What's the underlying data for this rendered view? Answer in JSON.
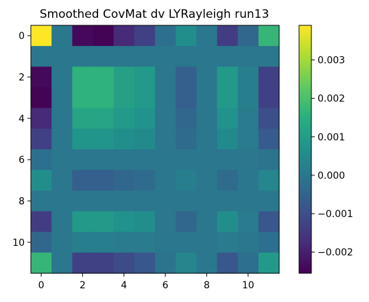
{
  "chart_data": {
    "type": "heatmap",
    "title": "Smoothed CovMat dv LYRayleigh run13",
    "xlabel": "",
    "ylabel": "",
    "colormap": "viridis",
    "vmin": -0.00255,
    "vmax": 0.0039,
    "x_ticks": [
      0,
      2,
      4,
      6,
      8,
      10
    ],
    "y_ticks": [
      0,
      2,
      4,
      6,
      8,
      10
    ],
    "x_tick_labels": [
      "0",
      "2",
      "4",
      "6",
      "8",
      "10"
    ],
    "y_tick_labels": [
      "0",
      "2",
      "4",
      "6",
      "8",
      "10"
    ],
    "colorbar_ticks": [
      0.003,
      0.002,
      0.001,
      0.0,
      -0.001,
      -0.002
    ],
    "colorbar_tick_labels": [
      "0.003",
      "0.002",
      "0.001",
      "0.000",
      "−0.001",
      "−0.002"
    ],
    "rows": 12,
    "cols": 12,
    "matrix": [
      [
        0.0039,
        0.0,
        -0.0024,
        -0.0025,
        -0.0018,
        -0.0013,
        -0.0002,
        0.0006,
        0.0,
        -0.0014,
        -0.0004,
        0.0017
      ],
      [
        0.0,
        0.0,
        0.0,
        0.0,
        0.0,
        0.0,
        0.0,
        0.0,
        0.0,
        0.0,
        0.0,
        0.0
      ],
      [
        -0.0024,
        0.0,
        0.0016,
        0.0016,
        0.0011,
        0.0009,
        0.0,
        -0.0006,
        0.0,
        0.0009,
        0.0002,
        -0.0013
      ],
      [
        -0.0025,
        0.0,
        0.0016,
        0.0016,
        0.0011,
        0.0009,
        0.0,
        -0.0006,
        0.0,
        0.0009,
        0.0002,
        -0.0013
      ],
      [
        -0.0018,
        0.0,
        0.0012,
        0.0012,
        0.0009,
        0.0007,
        0.0,
        -0.0004,
        0.0,
        0.0007,
        0.0001,
        -0.001
      ],
      [
        -0.0013,
        0.0,
        0.0008,
        0.0008,
        0.0006,
        0.0005,
        0.0,
        -0.0003,
        0.0,
        0.0005,
        0.0001,
        -0.0007
      ],
      [
        -0.0002,
        0.0,
        0.0,
        0.0,
        0.0,
        0.0,
        0.0,
        0.0,
        0.0,
        0.0,
        0.0,
        -0.0001
      ],
      [
        0.0006,
        0.0,
        -0.0006,
        -0.0006,
        -0.0004,
        -0.0003,
        0.0,
        0.0002,
        0.0,
        -0.0003,
        0.0,
        0.0004
      ],
      [
        0.0,
        0.0,
        0.0,
        0.0,
        0.0,
        0.0,
        0.0,
        0.0,
        0.0,
        0.0,
        0.0,
        0.0
      ],
      [
        -0.0014,
        0.0,
        0.0009,
        0.0009,
        0.0007,
        0.0006,
        0.0,
        -0.0004,
        0.0,
        0.0006,
        0.0001,
        -0.0008
      ],
      [
        -0.0004,
        0.0,
        0.0002,
        0.0002,
        0.0001,
        0.0001,
        0.0,
        0.0,
        0.0,
        0.0001,
        0.0,
        -0.0002
      ],
      [
        0.0017,
        0.0,
        -0.0013,
        -0.0013,
        -0.0011,
        -0.0008,
        -0.0001,
        0.0004,
        0.0,
        -0.0008,
        -0.0002,
        0.0009
      ]
    ]
  }
}
